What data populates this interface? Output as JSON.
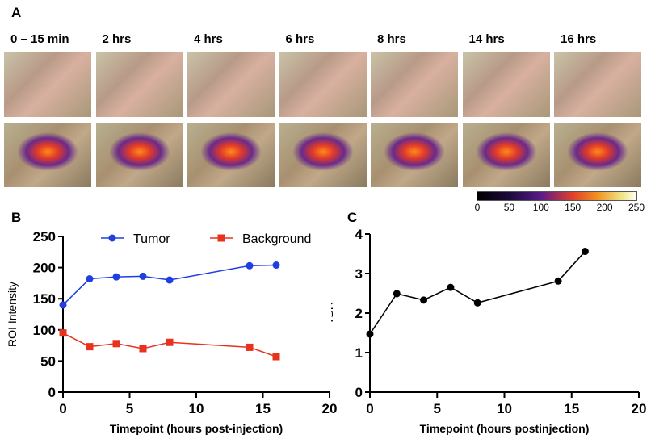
{
  "panels": {
    "a": "A",
    "b": "B",
    "c": "C"
  },
  "timepoints": [
    "0 – 15 min",
    "2 hrs",
    "4 hrs",
    "6 hrs",
    "8 hrs",
    "14 hrs",
    "16 hrs"
  ],
  "colorbar": {
    "ticks": [
      "0",
      "50",
      "100",
      "150",
      "200",
      "250"
    ],
    "colormap": "inferno-like"
  },
  "chart_data": [
    {
      "type": "line",
      "x": [
        0,
        2,
        4,
        6,
        8,
        14,
        16
      ],
      "series": [
        {
          "name": "Tumor",
          "values": [
            140,
            182,
            185,
            186,
            180,
            203,
            204
          ],
          "color": "#1f3fe0",
          "marker": "circle"
        },
        {
          "name": "Background",
          "values": [
            95,
            73,
            78,
            70,
            80,
            72,
            57
          ],
          "color": "#e8321e",
          "marker": "square"
        }
      ],
      "xlabel": "Timepoint (hours post-injection)",
      "ylabel": "ROI Intensity",
      "xlim": [
        0,
        20
      ],
      "ylim": [
        0,
        250
      ],
      "xticks": [
        0,
        5,
        10,
        15,
        20
      ],
      "yticks": [
        0,
        50,
        100,
        150,
        200,
        250
      ],
      "grid": false,
      "legend": "top"
    },
    {
      "type": "line",
      "x": [
        0,
        2,
        4,
        6,
        8,
        14,
        16
      ],
      "series": [
        {
          "values": [
            1.47,
            2.49,
            2.33,
            2.65,
            2.26,
            2.81,
            3.56
          ],
          "color": "#000000",
          "marker": "circle"
        }
      ],
      "xlabel": "Timepoint (hours postinjection)",
      "ylabel": "TBR",
      "xlim": [
        0,
        20
      ],
      "ylim": [
        0,
        4
      ],
      "xticks": [
        0,
        5,
        10,
        15,
        20
      ],
      "yticks": [
        0,
        1,
        2,
        3,
        4
      ],
      "grid": false
    }
  ]
}
